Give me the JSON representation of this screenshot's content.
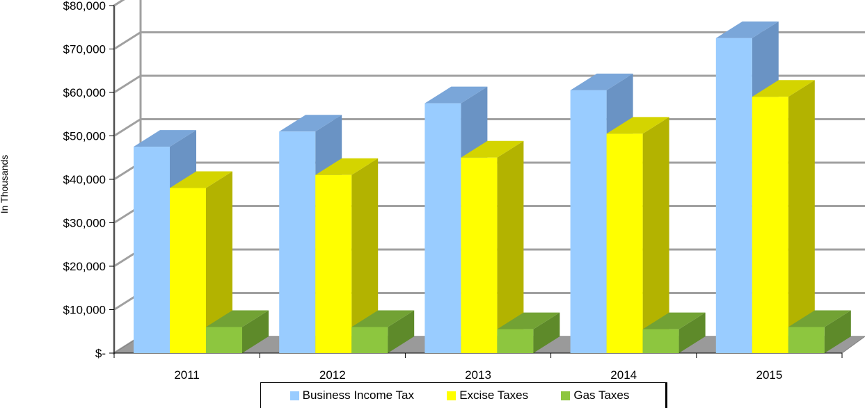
{
  "chart_data": {
    "type": "bar",
    "categories": [
      "2011",
      "2012",
      "2013",
      "2014",
      "2015"
    ],
    "series": [
      {
        "name": "Business Income Tax",
        "values": [
          47500,
          51000,
          57500,
          60500,
          72500
        ],
        "color": "#99ccff"
      },
      {
        "name": "Excise Taxes",
        "values": [
          38000,
          41000,
          45000,
          50500,
          59000
        ],
        "color": "#ffff00"
      },
      {
        "name": "Gas Taxes",
        "values": [
          6000,
          6000,
          5500,
          5500,
          6000
        ],
        "color": "#8dc63f"
      }
    ],
    "y_tick_labels": [
      "$-",
      "$10,000",
      "$20,000",
      "$30,000",
      "$40,000",
      "$50,000",
      "$60,000",
      "$70,000",
      "$80,000"
    ],
    "ylim": [
      0,
      80000
    ],
    "ylabel": "In Thousands",
    "xlabel": "",
    "title": "",
    "grid": true,
    "legend_position": "bottom",
    "three_d": true
  }
}
